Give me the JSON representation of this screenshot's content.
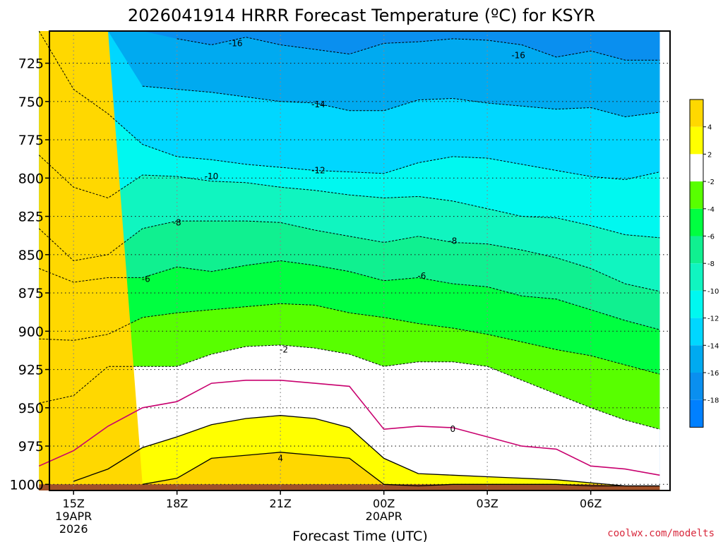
{
  "chart_data": {
    "type": "heatmap",
    "title": "2026041914 HRRR Forecast Temperature (ºC) for KSYR",
    "xlabel": "Forecast Time (UTC)",
    "ylabel": "",
    "credit": "coolwx.com/modelts",
    "x_hours": [
      14,
      15,
      16,
      17,
      18,
      19,
      20,
      21,
      22,
      23,
      24,
      25,
      26,
      27,
      28,
      29,
      30,
      31,
      32
    ],
    "xlim": [
      14.3,
      32.3
    ],
    "ylim": [
      704,
      1004
    ],
    "y_ticks": [
      725,
      750,
      775,
      800,
      825,
      850,
      875,
      900,
      925,
      950,
      975,
      1000
    ],
    "y_tick_labels": [
      "725",
      "750",
      "775",
      "800",
      "825",
      "850",
      "875",
      "900",
      "925",
      "950",
      "975",
      "1000"
    ],
    "x_ticks": [
      {
        "hour": 15,
        "lines": [
          "15Z",
          "19APR",
          "2026"
        ]
      },
      {
        "hour": 18,
        "lines": [
          "18Z"
        ]
      },
      {
        "hour": 21,
        "lines": [
          "21Z"
        ]
      },
      {
        "hour": 24,
        "lines": [
          "00Z",
          "20APR"
        ]
      },
      {
        "hour": 27,
        "lines": [
          "03Z"
        ]
      },
      {
        "hour": 30,
        "lines": [
          "06Z"
        ]
      }
    ],
    "surface_pressure": [
      1000,
      1000,
      1000,
      1000,
      1000,
      1000,
      1000,
      1000,
      1000,
      1000,
      1000,
      1000,
      1000,
      1000,
      1000,
      1000,
      1000,
      1001,
      1001
    ],
    "isotherms": [
      {
        "level": -16,
        "p": [
          null,
          null,
          null,
          null,
          709,
          713,
          708,
          713,
          716,
          719,
          712,
          711,
          709,
          710,
          713,
          721,
          717,
          723,
          723
        ]
      },
      {
        "level": -14,
        "p": [
          null,
          null,
          null,
          740,
          742,
          744,
          747,
          750,
          751,
          756,
          756,
          749,
          748,
          751,
          753,
          755,
          754,
          760,
          757
        ]
      },
      {
        "level": -12,
        "p": [
          703,
          742,
          758,
          778,
          786,
          788,
          791,
          793,
          795,
          796,
          797,
          790,
          786,
          787,
          791,
          795,
          799,
          801,
          796
        ]
      },
      {
        "level": -10,
        "p": [
          785,
          806,
          813,
          798,
          799,
          802,
          803,
          806,
          808,
          811,
          813,
          812,
          815,
          820,
          825,
          826,
          831,
          837,
          839
        ]
      },
      {
        "level": -8,
        "p": [
          833,
          854,
          850,
          833,
          828,
          828,
          828,
          829,
          834,
          838,
          842,
          838,
          842,
          843,
          847,
          852,
          859,
          869,
          874
        ]
      },
      {
        "level": -6,
        "p": [
          859,
          868,
          865,
          865,
          858,
          861,
          857,
          854,
          857,
          861,
          867,
          865,
          869,
          871,
          877,
          879,
          886,
          893,
          899
        ]
      },
      {
        "level": -4,
        "p": [
          905,
          906,
          902,
          891,
          888,
          886,
          884,
          882,
          883,
          888,
          891,
          895,
          898,
          902,
          907,
          912,
          916,
          922,
          928
        ]
      },
      {
        "level": -2,
        "p": [
          947,
          942,
          923,
          923,
          923,
          915,
          910,
          909,
          911,
          915,
          923,
          920,
          920,
          923,
          932,
          941,
          950,
          958,
          964
        ]
      },
      {
        "level": 0,
        "p": [
          988,
          978,
          962,
          950,
          946,
          934,
          932,
          932,
          934,
          936,
          964,
          962,
          963,
          969,
          975,
          977,
          988,
          990,
          994
        ]
      },
      {
        "level": 2,
        "p": [
          null,
          998,
          990,
          976,
          969,
          961,
          957,
          955,
          957,
          963,
          983,
          993,
          994,
          995,
          996,
          997,
          999,
          1001,
          1001
        ]
      },
      {
        "level": 4,
        "p": [
          null,
          null,
          null,
          1000,
          996,
          983,
          981,
          979,
          981,
          983,
          1000,
          1001,
          1000,
          1000,
          1000,
          1000,
          1001,
          1001,
          1001
        ]
      }
    ],
    "contour_labels": [
      {
        "text": "-16",
        "hour": 19.7,
        "p": 712
      },
      {
        "text": "-16",
        "hour": 27.9,
        "p": 720
      },
      {
        "text": "-14",
        "hour": 22.1,
        "p": 752
      },
      {
        "text": "-12",
        "hour": 22.1,
        "p": 795
      },
      {
        "text": "-10",
        "hour": 19.0,
        "p": 799
      },
      {
        "text": "-8",
        "hour": 18.0,
        "p": 829
      },
      {
        "text": "-8",
        "hour": 26.0,
        "p": 841
      },
      {
        "text": "-6",
        "hour": 17.1,
        "p": 866
      },
      {
        "text": "-6",
        "hour": 25.1,
        "p": 864
      },
      {
        "text": "-2",
        "hour": 21.1,
        "p": 912
      },
      {
        "text": "0",
        "hour": 26.0,
        "p": 964
      },
      {
        "text": "4",
        "hour": 21.0,
        "p": 983
      }
    ],
    "color_scale": {
      "bins": [
        {
          "lo": -100,
          "hi": -18,
          "color": "#0080ff"
        },
        {
          "lo": -18,
          "hi": -16,
          "color": "#0a8fef"
        },
        {
          "lo": -16,
          "hi": -14,
          "color": "#00aaf0"
        },
        {
          "lo": -14,
          "hi": -12,
          "color": "#00d7ff"
        },
        {
          "lo": -12,
          "hi": -10,
          "color": "#00f8f0"
        },
        {
          "lo": -10,
          "hi": -8,
          "color": "#10f5c0"
        },
        {
          "lo": -8,
          "hi": -6,
          "color": "#10f090"
        },
        {
          "lo": -6,
          "hi": -4,
          "color": "#00ff40"
        },
        {
          "lo": -4,
          "hi": -2,
          "color": "#58ff00"
        },
        {
          "lo": -2,
          "hi": 2,
          "color": "#ffffff"
        },
        {
          "lo": 2,
          "hi": 4,
          "color": "#ffff00"
        },
        {
          "lo": 4,
          "hi": 100,
          "color": "#ffd800"
        }
      ],
      "tick_labels": [
        "4",
        "2",
        "-2",
        "-4",
        "-6",
        "-8",
        "-10",
        "-12",
        "-14",
        "-16",
        "-18"
      ]
    },
    "surface_color": "#a05028",
    "zero_line_color": "#c8006e"
  }
}
